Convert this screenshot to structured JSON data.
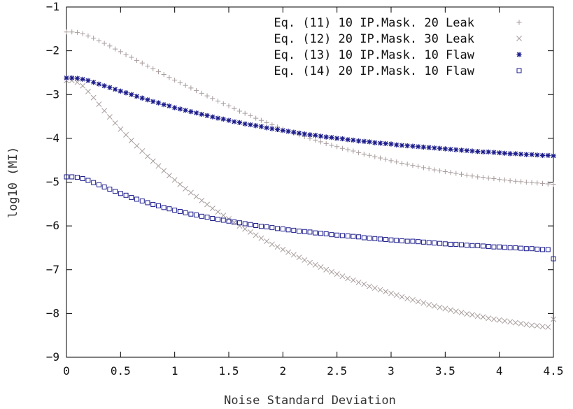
{
  "chart_data": {
    "type": "scatter",
    "xlabel": "Noise Standard Deviation",
    "ylabel": "log10 (MI)",
    "xlim": [
      0,
      4.5
    ],
    "ylim": [
      -9,
      -1
    ],
    "x_ticks": [
      "0",
      "0.5",
      "1",
      "1.5",
      "2",
      "2.5",
      "3",
      "3.5",
      "4",
      "4.5"
    ],
    "y_ticks": [
      "−1",
      "−2",
      "−3",
      "−4",
      "−5",
      "−6",
      "−7",
      "−8",
      "−9"
    ],
    "grid": false,
    "legend_position": "top-right",
    "x": [
      0.0,
      0.05,
      0.1,
      0.15,
      0.2,
      0.25,
      0.3,
      0.35,
      0.4,
      0.45,
      0.5,
      0.55,
      0.6,
      0.65,
      0.7,
      0.75,
      0.8,
      0.85,
      0.9,
      0.95,
      1.0,
      1.05,
      1.1,
      1.15,
      1.2,
      1.25,
      1.3,
      1.35,
      1.4,
      1.45,
      1.5,
      1.55,
      1.6,
      1.65,
      1.7,
      1.75,
      1.8,
      1.85,
      1.9,
      1.95,
      2.0,
      2.05,
      2.1,
      2.15,
      2.2,
      2.25,
      2.3,
      2.35,
      2.4,
      2.45,
      2.5,
      2.55,
      2.6,
      2.65,
      2.7,
      2.75,
      2.8,
      2.85,
      2.9,
      2.95,
      3.0,
      3.05,
      3.1,
      3.15,
      3.2,
      3.25,
      3.3,
      3.35,
      3.4,
      3.45,
      3.5,
      3.55,
      3.6,
      3.65,
      3.7,
      3.75,
      3.8,
      3.85,
      3.9,
      3.95,
      4.0,
      4.05,
      4.1,
      4.15,
      4.2,
      4.25,
      4.3,
      4.35,
      4.4,
      4.45,
      4.5
    ],
    "series": [
      {
        "name": "Eq. (11) 10 IP.Mask. 20 Leak",
        "marker": "plus",
        "color": "#a89c9c",
        "values": [
          -1.57,
          -1.57,
          -1.58,
          -1.61,
          -1.66,
          -1.71,
          -1.77,
          -1.83,
          -1.89,
          -1.96,
          -2.02,
          -2.09,
          -2.15,
          -2.22,
          -2.28,
          -2.35,
          -2.41,
          -2.48,
          -2.54,
          -2.61,
          -2.67,
          -2.73,
          -2.79,
          -2.85,
          -2.91,
          -2.97,
          -3.03,
          -3.09,
          -3.15,
          -3.21,
          -3.26,
          -3.32,
          -3.38,
          -3.43,
          -3.48,
          -3.54,
          -3.59,
          -3.64,
          -3.69,
          -3.74,
          -3.79,
          -3.83,
          -3.88,
          -3.92,
          -3.96,
          -4.0,
          -4.04,
          -4.08,
          -4.12,
          -4.16,
          -4.19,
          -4.23,
          -4.26,
          -4.29,
          -4.33,
          -4.36,
          -4.39,
          -4.42,
          -4.45,
          -4.48,
          -4.51,
          -4.54,
          -4.57,
          -4.59,
          -4.62,
          -4.64,
          -4.67,
          -4.69,
          -4.72,
          -4.74,
          -4.76,
          -4.78,
          -4.8,
          -4.82,
          -4.84,
          -4.86,
          -4.88,
          -4.89,
          -4.91,
          -4.92,
          -4.94,
          -4.95,
          -4.97,
          -4.98,
          -4.99,
          -5.0,
          -5.01,
          -5.02,
          -5.03,
          -5.04,
          -5.05
        ]
      },
      {
        "name": "Eq. (12) 20 IP.Mask. 30 Leak",
        "marker": "cross",
        "color": "#a89c9c",
        "values": [
          -2.68,
          -2.68,
          -2.72,
          -2.8,
          -2.93,
          -3.07,
          -3.22,
          -3.37,
          -3.51,
          -3.65,
          -3.79,
          -3.92,
          -4.05,
          -4.17,
          -4.29,
          -4.41,
          -4.52,
          -4.63,
          -4.74,
          -4.85,
          -4.95,
          -5.05,
          -5.15,
          -5.24,
          -5.33,
          -5.42,
          -5.51,
          -5.6,
          -5.68,
          -5.76,
          -5.84,
          -5.92,
          -6.0,
          -6.07,
          -6.14,
          -6.21,
          -6.28,
          -6.35,
          -6.42,
          -6.48,
          -6.54,
          -6.6,
          -6.66,
          -6.72,
          -6.78,
          -6.84,
          -6.89,
          -6.94,
          -7.0,
          -7.05,
          -7.1,
          -7.15,
          -7.2,
          -7.24,
          -7.29,
          -7.33,
          -7.38,
          -7.42,
          -7.46,
          -7.5,
          -7.54,
          -7.58,
          -7.62,
          -7.66,
          -7.69,
          -7.73,
          -7.76,
          -7.8,
          -7.83,
          -7.86,
          -7.89,
          -7.92,
          -7.95,
          -7.98,
          -8.01,
          -8.03,
          -8.06,
          -8.08,
          -8.11,
          -8.13,
          -8.15,
          -8.17,
          -8.19,
          -8.21,
          -8.23,
          -8.25,
          -8.27,
          -8.28,
          -8.3,
          -8.31,
          -8.13
        ]
      },
      {
        "name": "Eq. (13) 10 IP.Mask. 10 Flaw",
        "marker": "star",
        "color": "#1c1c8c",
        "values": [
          -2.62,
          -2.62,
          -2.63,
          -2.65,
          -2.68,
          -2.72,
          -2.76,
          -2.8,
          -2.84,
          -2.88,
          -2.92,
          -2.96,
          -3.0,
          -3.04,
          -3.08,
          -3.12,
          -3.16,
          -3.19,
          -3.23,
          -3.26,
          -3.3,
          -3.33,
          -3.36,
          -3.39,
          -3.42,
          -3.45,
          -3.48,
          -3.51,
          -3.54,
          -3.56,
          -3.59,
          -3.62,
          -3.64,
          -3.67,
          -3.69,
          -3.71,
          -3.73,
          -3.76,
          -3.78,
          -3.8,
          -3.82,
          -3.84,
          -3.86,
          -3.88,
          -3.9,
          -3.92,
          -3.93,
          -3.95,
          -3.97,
          -3.98,
          -4.0,
          -4.01,
          -4.03,
          -4.04,
          -4.06,
          -4.07,
          -4.08,
          -4.1,
          -4.11,
          -4.12,
          -4.13,
          -4.15,
          -4.16,
          -4.17,
          -4.18,
          -4.19,
          -4.2,
          -4.21,
          -4.22,
          -4.23,
          -4.24,
          -4.25,
          -4.26,
          -4.27,
          -4.28,
          -4.29,
          -4.3,
          -4.31,
          -4.31,
          -4.32,
          -4.33,
          -4.34,
          -4.35,
          -4.35,
          -4.36,
          -4.37,
          -4.37,
          -4.38,
          -4.39,
          -4.39,
          -4.4
        ]
      },
      {
        "name": "Eq. (14) 20 IP.Mask. 10 Flaw",
        "marker": "square",
        "color": "#1c1c8c",
        "values": [
          -4.88,
          -4.88,
          -4.89,
          -4.92,
          -4.96,
          -5.01,
          -5.06,
          -5.11,
          -5.16,
          -5.21,
          -5.26,
          -5.3,
          -5.35,
          -5.39,
          -5.43,
          -5.47,
          -5.51,
          -5.54,
          -5.58,
          -5.61,
          -5.64,
          -5.67,
          -5.7,
          -5.73,
          -5.75,
          -5.78,
          -5.8,
          -5.83,
          -5.85,
          -5.87,
          -5.89,
          -5.91,
          -5.93,
          -5.95,
          -5.97,
          -5.99,
          -6.01,
          -6.02,
          -6.04,
          -6.06,
          -6.07,
          -6.09,
          -6.1,
          -6.12,
          -6.13,
          -6.14,
          -6.16,
          -6.17,
          -6.18,
          -6.2,
          -6.21,
          -6.22,
          -6.23,
          -6.24,
          -6.25,
          -6.27,
          -6.28,
          -6.29,
          -6.3,
          -6.31,
          -6.32,
          -6.33,
          -6.34,
          -6.35,
          -6.35,
          -6.36,
          -6.37,
          -6.38,
          -6.39,
          -6.4,
          -6.41,
          -6.42,
          -6.42,
          -6.43,
          -6.44,
          -6.45,
          -6.45,
          -6.46,
          -6.47,
          -6.48,
          -6.48,
          -6.49,
          -6.5,
          -6.5,
          -6.51,
          -6.52,
          -6.52,
          -6.53,
          -6.54,
          -6.54,
          -6.75
        ]
      }
    ]
  }
}
